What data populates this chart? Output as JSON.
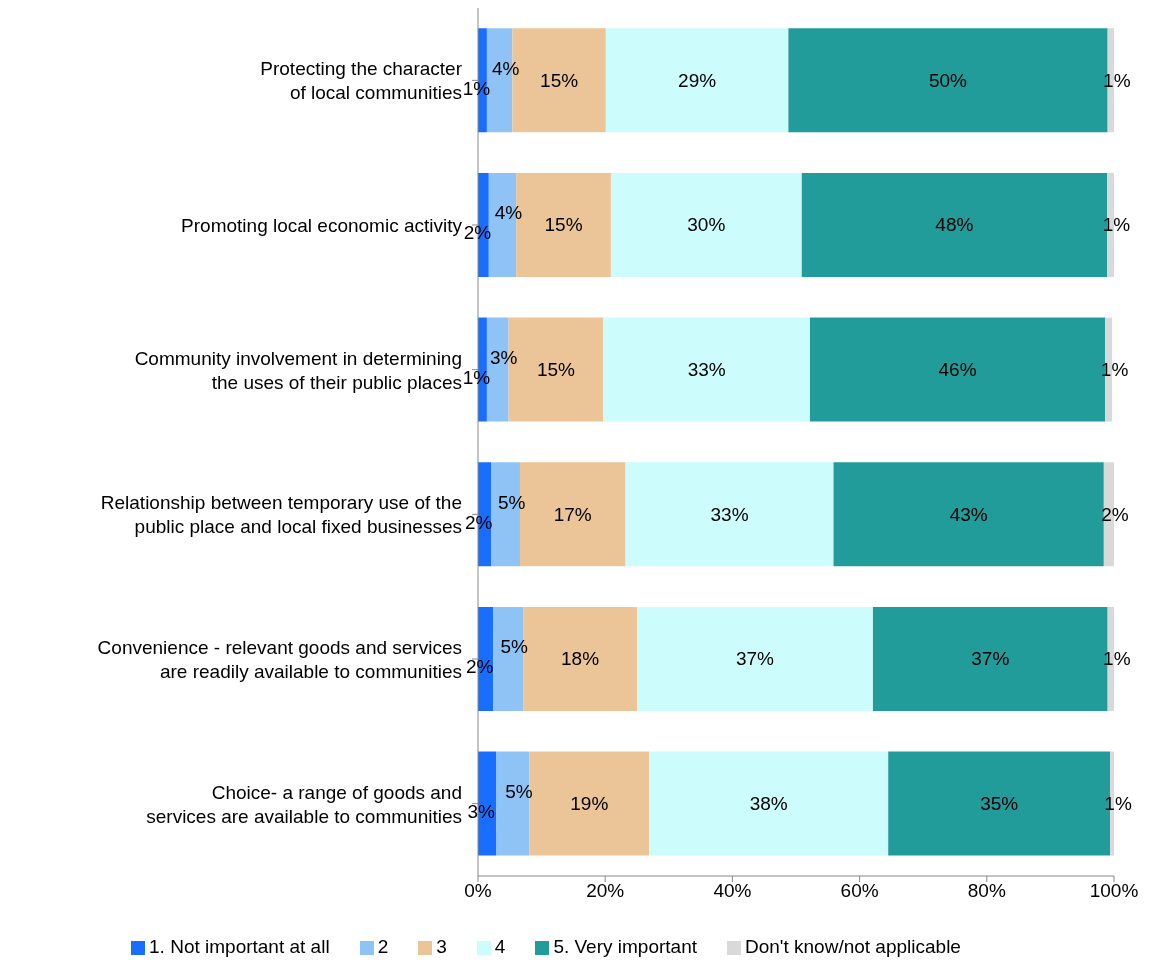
{
  "chart_data": {
    "type": "bar",
    "orientation": "horizontal",
    "stacked": true,
    "categories": [
      "Protecting the character of local communities",
      "Promoting local economic activity",
      "Community involvement in determining the uses of their public places",
      "Relationship between temporary use of the public place and local fixed businesses",
      "Convenience - relevant goods and services are readily available to communities",
      "Choice- a range of goods and services are available to communities"
    ],
    "series": [
      {
        "name": "1. Not important at all",
        "color": "#1a6eff",
        "values": [
          1.4,
          1.7,
          1.4,
          2.1,
          2.4,
          2.9
        ],
        "value_labels": [
          "1%",
          "2%",
          "1%",
          "2%",
          "2%",
          "3%"
        ]
      },
      {
        "name": "2",
        "color": "#8fc3f5",
        "values": [
          4.0,
          4.3,
          3.4,
          4.5,
          4.7,
          5.2
        ],
        "value_labels": [
          "4%",
          "4%",
          "3%",
          "5%",
          "5%",
          "5%"
        ]
      },
      {
        "name": "3",
        "color": "#ebc598",
        "values": [
          14.7,
          14.9,
          14.9,
          16.6,
          17.9,
          18.8
        ],
        "value_labels": [
          "15%",
          "15%",
          "15%",
          "17%",
          "18%",
          "19%"
        ]
      },
      {
        "name": "4",
        "color": "#ccfcfc",
        "values": [
          28.7,
          30.0,
          32.5,
          32.7,
          37.1,
          37.6
        ],
        "value_labels": [
          "29%",
          "30%",
          "33%",
          "33%",
          "37%",
          "38%"
        ]
      },
      {
        "name": "5. Very important",
        "color": "#229b9b",
        "values": [
          50.2,
          48.0,
          46.4,
          42.5,
          36.9,
          34.9
        ],
        "value_labels": [
          "50%",
          "48%",
          "46%",
          "43%",
          "37%",
          "35%"
        ]
      },
      {
        "name": "Don't know/not applicable",
        "color": "#d9d9d9",
        "values": [
          1.0,
          1.1,
          1.1,
          1.6,
          1.0,
          0.6
        ],
        "value_labels": [
          "1%",
          "1%",
          "1%",
          "2%",
          "1%",
          "1%"
        ]
      }
    ],
    "xlim": [
      0,
      100
    ],
    "xticks": [
      {
        "value": 0,
        "label": "0%"
      },
      {
        "value": 20,
        "label": "20%"
      },
      {
        "value": 40,
        "label": "40%"
      },
      {
        "value": 60,
        "label": "60%"
      },
      {
        "value": 80,
        "label": "80%"
      },
      {
        "value": 100,
        "label": "100%"
      }
    ],
    "grid": false,
    "legend": "bottom"
  }
}
